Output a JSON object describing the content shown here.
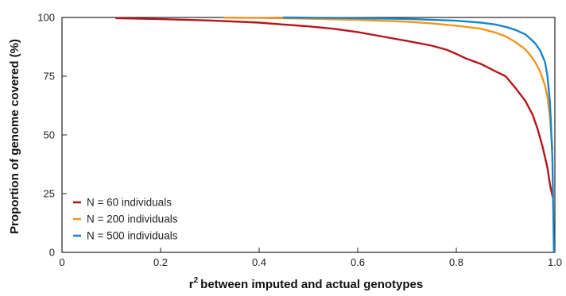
{
  "chart_data": {
    "type": "line",
    "xlabel": "between imputed and actual genotypes",
    "xlabel_prefix": "r",
    "xlabel_sup": "2",
    "ylabel": "Proportion of genome covered (%)",
    "xlim": [
      0,
      1
    ],
    "ylim": [
      0,
      100
    ],
    "xticks": [
      0,
      0.2,
      0.4,
      0.6,
      0.8,
      1.0
    ],
    "xtick_labels": [
      "0",
      "0.2",
      "0.4",
      "0.6",
      "0.8",
      "1.0"
    ],
    "yticks": [
      0,
      25,
      50,
      75,
      100
    ],
    "ytick_labels": [
      "0",
      "25",
      "50",
      "75",
      "100"
    ],
    "grid": false,
    "legend_position": "bottom-left",
    "series": [
      {
        "name": "N = 60 individuals",
        "color": "#b5151b",
        "x": [
          0.11,
          0.2,
          0.3,
          0.4,
          0.45,
          0.5,
          0.55,
          0.6,
          0.65,
          0.7,
          0.75,
          0.78,
          0.8,
          0.82,
          0.85,
          0.88,
          0.9,
          0.92,
          0.94,
          0.955,
          0.965,
          0.975,
          0.985,
          0.99,
          0.995
        ],
        "values": [
          99.7,
          99.3,
          98.7,
          97.8,
          97.0,
          96.2,
          95.2,
          93.8,
          91.9,
          90.0,
          88.0,
          86.3,
          84.5,
          82.5,
          80.2,
          77.0,
          75.0,
          70.0,
          64.5,
          58.5,
          52.5,
          45.0,
          36.0,
          29.0,
          24.0
        ]
      },
      {
        "name": "N = 200 individuals",
        "color": "#f0951e",
        "x": [
          0.33,
          0.4,
          0.5,
          0.6,
          0.7,
          0.75,
          0.8,
          0.85,
          0.88,
          0.9,
          0.92,
          0.94,
          0.95,
          0.96,
          0.97,
          0.98,
          0.985,
          0.99,
          0.995
        ],
        "values": [
          99.9,
          99.8,
          99.5,
          99.0,
          98.2,
          97.5,
          96.5,
          95.2,
          93.5,
          92.0,
          89.5,
          86.5,
          84.0,
          81.0,
          77.0,
          71.0,
          66.0,
          58.0,
          44.0
        ]
      },
      {
        "name": "N = 500 individuals",
        "color": "#1a86c8",
        "x": [
          0.45,
          0.5,
          0.6,
          0.7,
          0.8,
          0.85,
          0.88,
          0.9,
          0.92,
          0.94,
          0.95,
          0.96,
          0.97,
          0.98,
          0.985,
          0.99,
          0.995,
          0.998
        ],
        "values": [
          100.0,
          99.9,
          99.7,
          99.4,
          98.6,
          97.8,
          97.0,
          96.0,
          94.7,
          92.8,
          91.0,
          89.0,
          86.0,
          81.0,
          75.0,
          64.0,
          40.0,
          0
        ]
      }
    ]
  }
}
